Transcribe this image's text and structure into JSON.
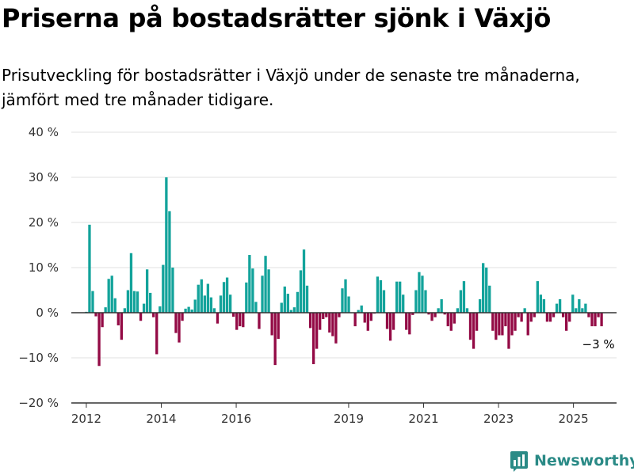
{
  "title": "Priserna på bostadsrätter sjönk i Växjö",
  "subtitle": "Prisutveckling för bostadsrätter i Växjö under de senaste tre månaderna, jämfört med tre månader tidigare.",
  "logo": "Newsworthy",
  "colors": {
    "positive": "#13a39b",
    "negative": "#930a45",
    "grid": "#e2e2e2",
    "axis": "#333333"
  },
  "chart_data": {
    "type": "bar",
    "title": "Priserna på bostadsrätter sjönk i Växjö",
    "ylim": [
      -20,
      40
    ],
    "yticks": [
      -20,
      -10,
      0,
      10,
      20,
      30,
      40
    ],
    "ytick_labels": [
      "−20 %",
      "−10 %",
      "0 %",
      "10 %",
      "20 %",
      "30 %",
      "40 %"
    ],
    "xticks": [
      2012,
      2014,
      2016,
      2019,
      2021,
      2023,
      2025
    ],
    "grid": true,
    "x_start": "2012-01",
    "x_end": "2025-10",
    "last_value_label": "−3 %",
    "values": [
      0.2,
      19.5,
      4.8,
      -0.8,
      -11.8,
      -3.2,
      1.2,
      7.5,
      8.2,
      3.2,
      -2.8,
      -6.0,
      1.0,
      5.0,
      13.2,
      4.8,
      4.7,
      -1.8,
      2.0,
      9.6,
      4.4,
      -1.0,
      -9.2,
      1.4,
      10.6,
      30.0,
      22.5,
      10.0,
      -4.5,
      -6.6,
      -1.8,
      0.9,
      1.3,
      0.7,
      2.9,
      6.2,
      7.4,
      3.8,
      6.4,
      3.4,
      1.0,
      -2.4,
      3.8,
      6.8,
      7.8,
      4.0,
      -0.9,
      -3.8,
      -3.0,
      -3.2,
      6.7,
      12.8,
      9.8,
      2.4,
      -3.6,
      8.2,
      12.6,
      9.6,
      -5.0,
      -11.6,
      -5.8,
      2.2,
      5.8,
      4.2,
      0.6,
      1.2,
      4.6,
      9.4,
      14.0,
      6.0,
      -3.4,
      -11.4,
      -8.0,
      -3.8,
      -1.4,
      -1.0,
      -4.4,
      -5.2,
      -6.8,
      -1.0,
      5.4,
      7.4,
      3.6,
      0.0,
      -3.0,
      0.6,
      1.6,
      -2.2,
      -4.0,
      -1.8,
      -0.2,
      8.0,
      7.2,
      5.0,
      -3.6,
      -6.2,
      -3.8,
      6.9,
      6.9,
      4.0,
      -3.8,
      -4.8,
      -0.5,
      5.0,
      9.0,
      8.2,
      5.0,
      -0.4,
      -1.8,
      -1.0,
      1.0,
      3.0,
      -0.4,
      -3.0,
      -4.0,
      -2.4,
      1.0,
      5.0,
      7.0,
      1.0,
      -6.0,
      -8.0,
      -4.0,
      3.0,
      11.0,
      10.0,
      6.0,
      -4.0,
      -6.0,
      -5.0,
      -5.0,
      -3.0,
      -8.0,
      -5.0,
      -4.0,
      -1.0,
      -2.0,
      1.0,
      -5.0,
      -2.0,
      -1.0,
      7.0,
      4.0,
      3.0,
      -2.0,
      -2.0,
      -1.0,
      2.0,
      3.0,
      -1.0,
      -4.0,
      -2.0,
      4.0,
      1.0,
      3.0,
      1.0,
      2.0,
      -1.0,
      -3.0,
      -3.0,
      -1.0,
      -3.0
    ]
  }
}
